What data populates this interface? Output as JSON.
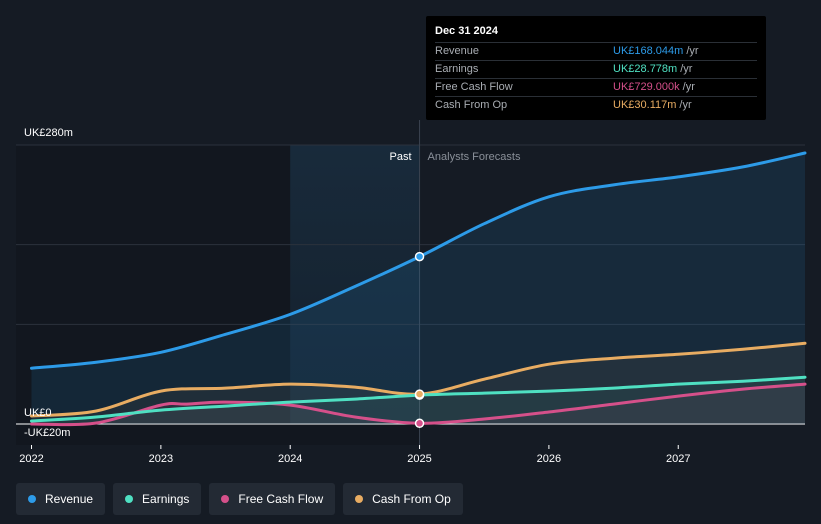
{
  "chart_data": {
    "type": "line",
    "ylabel_top": "UK£280m",
    "ylabel_zero": "UK£0",
    "ylabel_neg": "-UK£20m",
    "ylim": [
      -20,
      280
    ],
    "xlim": [
      2021.88,
      2027.98
    ],
    "x_ticks": [
      {
        "value": 2022,
        "label": "2022"
      },
      {
        "value": 2023,
        "label": "2023"
      },
      {
        "value": 2024,
        "label": "2024"
      },
      {
        "value": 2025,
        "label": "2025"
      },
      {
        "value": 2026,
        "label": "2026"
      },
      {
        "value": 2027,
        "label": "2027"
      }
    ],
    "past_label": "Past",
    "forecast_label": "Analysts Forecasts",
    "past_start": 2024.0,
    "divider": 2025.0,
    "series": [
      {
        "name": "Revenue",
        "color": "#2d9be8",
        "x": [
          2022.0,
          2022.5,
          2023.0,
          2023.5,
          2024.0,
          2024.5,
          2025.0,
          2025.5,
          2026.0,
          2026.5,
          2027.0,
          2027.5,
          2027.98
        ],
        "values": [
          56,
          62,
          72,
          90,
          110,
          138,
          168,
          201,
          228,
          240,
          248,
          258,
          272
        ]
      },
      {
        "name": "Earnings",
        "color": "#4fe0c2",
        "x": [
          2022.0,
          2022.5,
          2023.0,
          2023.5,
          2024.0,
          2024.5,
          2025.0,
          2025.5,
          2026.0,
          2026.5,
          2027.0,
          2027.5,
          2027.98
        ],
        "values": [
          3,
          7,
          14,
          18,
          22,
          25,
          29,
          31,
          33,
          36,
          40,
          43,
          47
        ]
      },
      {
        "name": "Free Cash Flow",
        "color": "#d5508a",
        "x": [
          2022.0,
          2022.5,
          2023.0,
          2023.2,
          2023.5,
          2024.0,
          2024.5,
          2025.0,
          2025.5,
          2026.0,
          2026.5,
          2027.0,
          2027.5,
          2027.98
        ],
        "values": [
          0,
          1,
          19,
          20,
          22,
          19,
          7,
          0.7,
          5,
          12,
          20,
          28,
          35,
          40
        ]
      },
      {
        "name": "Cash From Op",
        "color": "#e8ac62",
        "x": [
          2022.0,
          2022.5,
          2023.0,
          2023.5,
          2024.0,
          2024.5,
          2025.0,
          2025.5,
          2026.0,
          2026.5,
          2027.0,
          2027.5,
          2027.98
        ],
        "values": [
          8,
          13,
          33,
          36,
          40,
          37,
          30,
          45,
          60,
          66,
          70,
          75,
          81
        ]
      }
    ]
  },
  "tooltip": {
    "date": "Dec 31 2024",
    "rows": [
      {
        "label": "Revenue",
        "value": "UK£168.044m",
        "unit": "/yr",
        "color": "#2d9be8"
      },
      {
        "label": "Earnings",
        "value": "UK£28.778m",
        "unit": "/yr",
        "color": "#4fe0c2"
      },
      {
        "label": "Free Cash Flow",
        "value": "UK£729.000k",
        "unit": "/yr",
        "color": "#d5508a"
      },
      {
        "label": "Cash From Op",
        "value": "UK£30.117m",
        "unit": "/yr",
        "color": "#e8ac62"
      }
    ]
  },
  "legend": {
    "items": [
      {
        "label": "Revenue",
        "color": "#2d9be8"
      },
      {
        "label": "Earnings",
        "color": "#4fe0c2"
      },
      {
        "label": "Free Cash Flow",
        "color": "#d5508a"
      },
      {
        "label": "Cash From Op",
        "color": "#e8ac62"
      }
    ]
  }
}
